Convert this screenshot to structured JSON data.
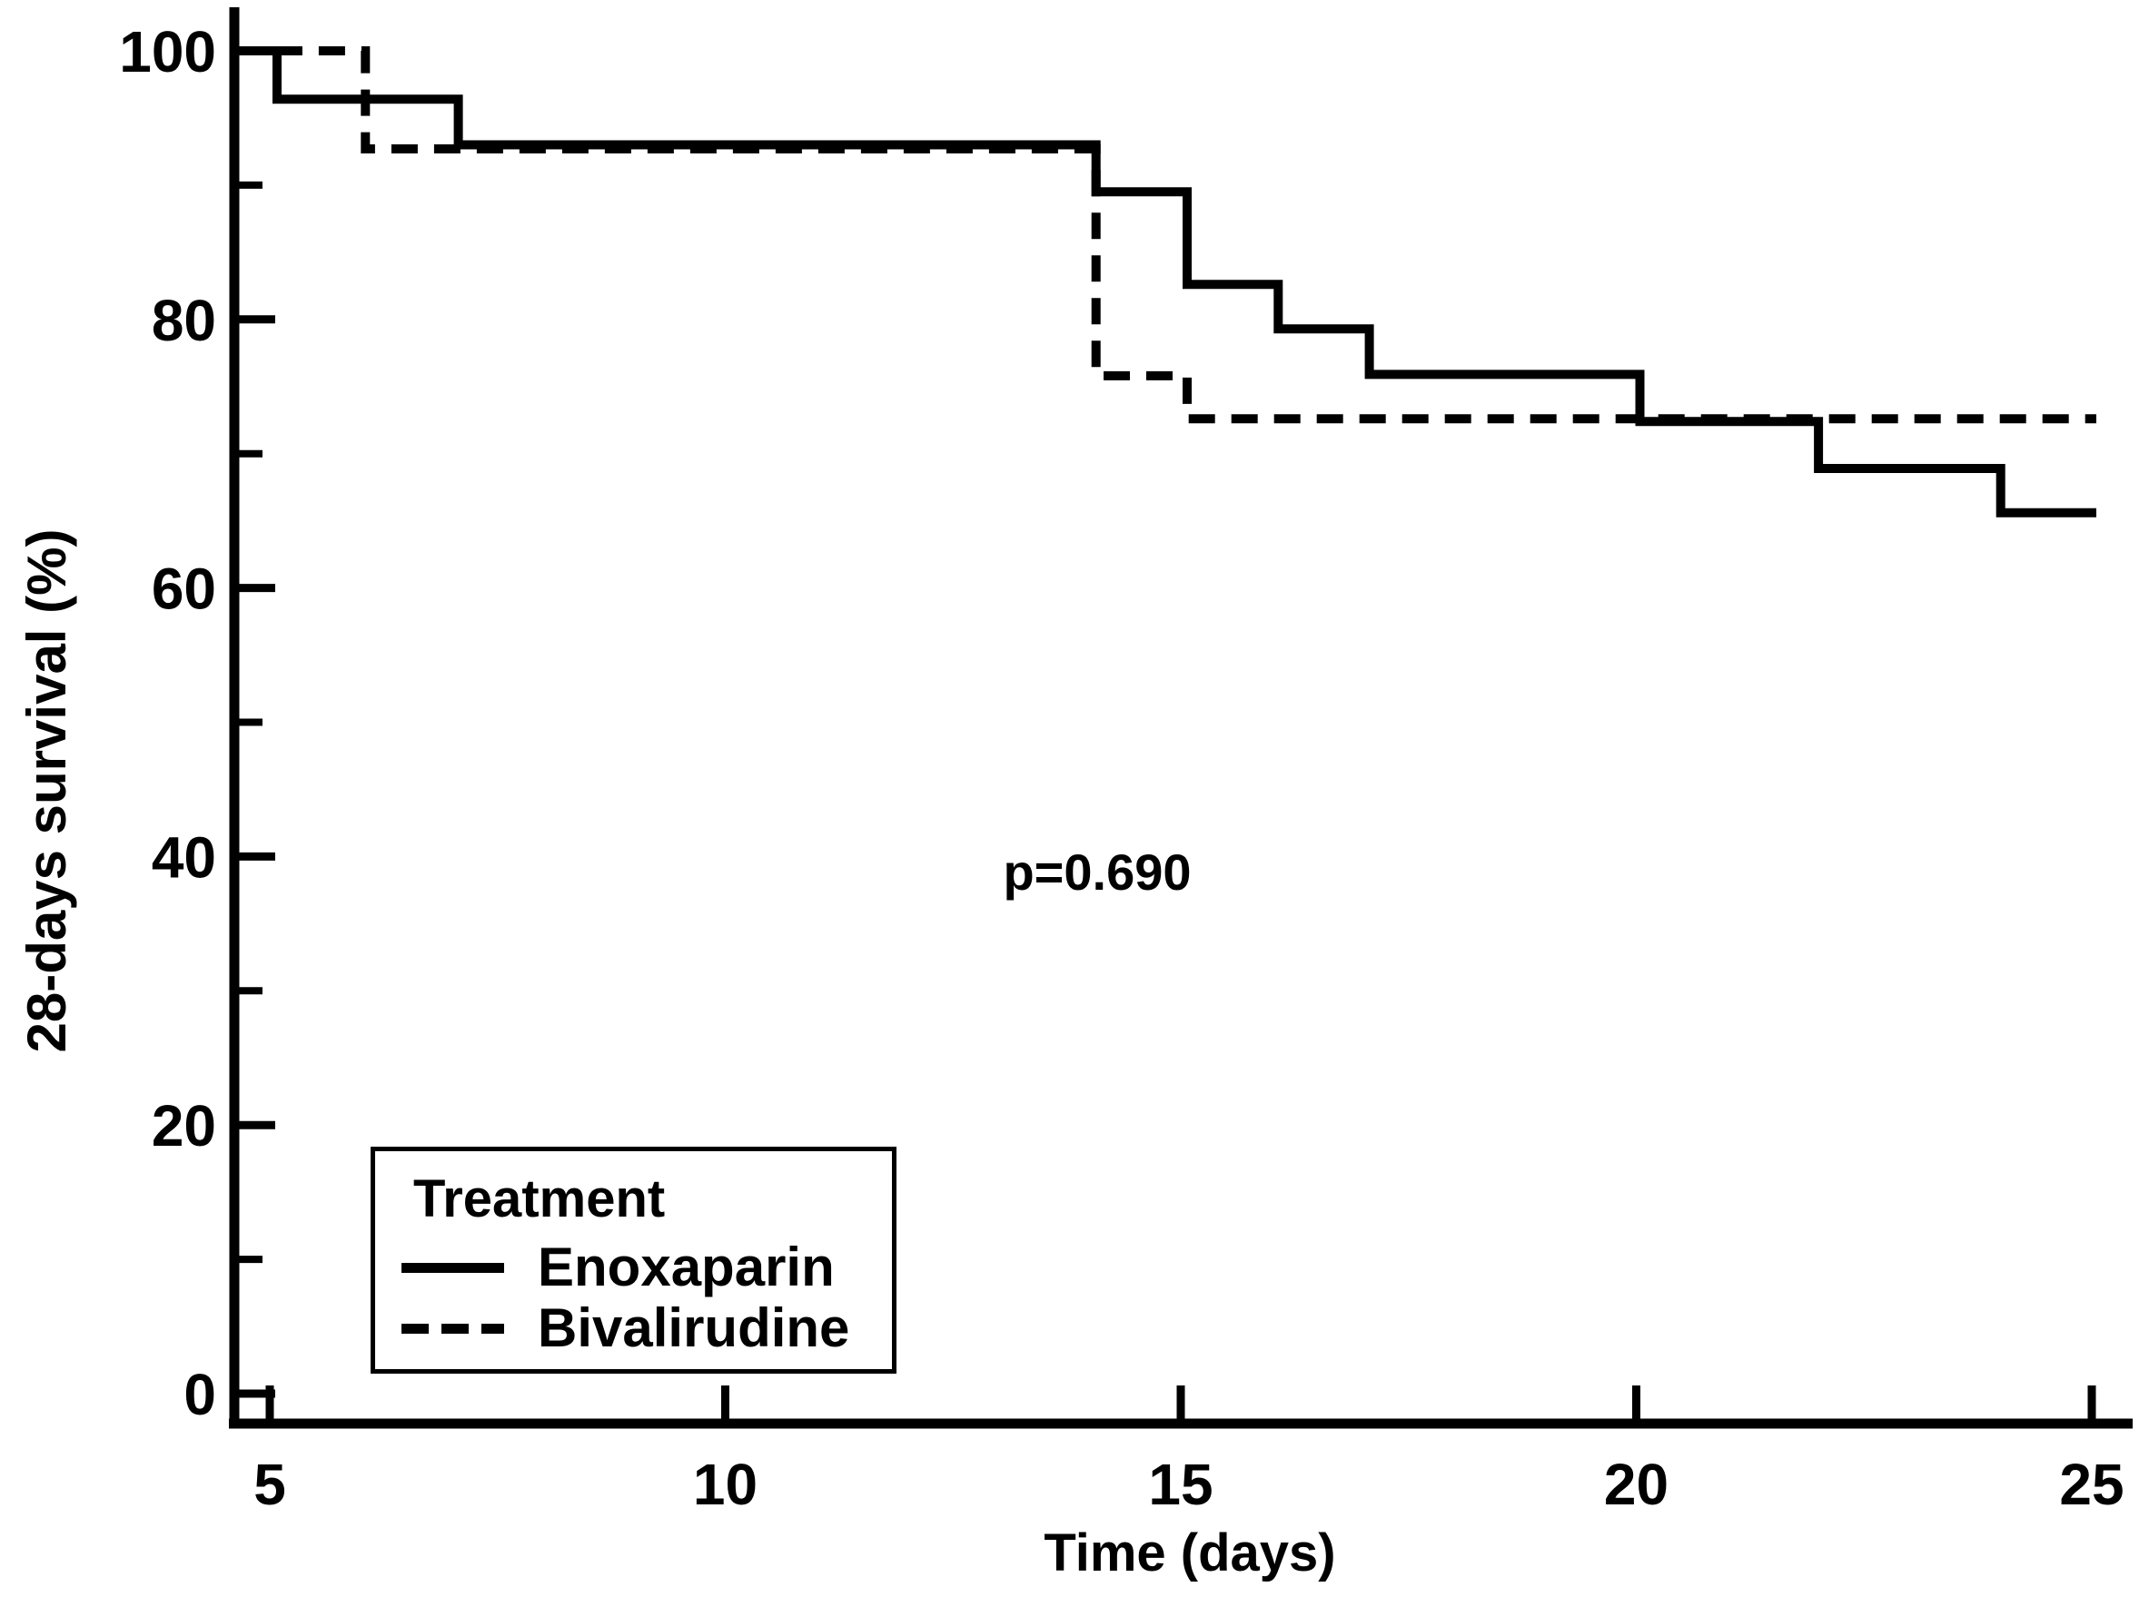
{
  "chart_data": {
    "type": "line",
    "chart_style": "kaplan-meier-step-survival",
    "title": "",
    "xlabel": "Time (days)",
    "ylabel": "28-days survival (%)",
    "x_ticks": [
      5,
      10,
      15,
      20,
      25
    ],
    "y_ticks_major": [
      0,
      20,
      40,
      60,
      80,
      100
    ],
    "y_ticks_minor": [
      10,
      30,
      50,
      70,
      90
    ],
    "xlim": [
      4.6,
      25.45
    ],
    "ylim": [
      0,
      103
    ],
    "grid": false,
    "axis_color": "#000000",
    "line_color": "#000000",
    "background_color": "#ffffff",
    "annotation": {
      "text": "p=0.690",
      "x": 14.1,
      "y": 40
    },
    "legend": {
      "title": "Treatment",
      "position": "lower-left",
      "entries": [
        {
          "label": "Enoxaparin",
          "line_style": "solid"
        },
        {
          "label": "Bivalirudine",
          "line_style": "dashed"
        }
      ]
    },
    "series": [
      {
        "name": "Enoxaparin",
        "line_style": "solid",
        "points": [
          [
            4.6,
            100
          ],
          [
            5.08,
            100
          ],
          [
            5.08,
            96.4
          ],
          [
            7.07,
            96.4
          ],
          [
            7.07,
            93.0
          ],
          [
            14.07,
            93.0
          ],
          [
            14.07,
            89.5
          ],
          [
            15.07,
            89.5
          ],
          [
            15.07,
            82.6
          ],
          [
            16.07,
            82.6
          ],
          [
            16.07,
            79.3
          ],
          [
            17.07,
            79.3
          ],
          [
            17.07,
            75.9
          ],
          [
            20.04,
            75.9
          ],
          [
            20.04,
            72.4
          ],
          [
            22.0,
            72.4
          ],
          [
            22.0,
            68.9
          ],
          [
            24.0,
            68.9
          ],
          [
            24.0,
            65.6
          ],
          [
            25.05,
            65.6
          ]
        ]
      },
      {
        "name": "Bivalirudine",
        "line_style": "dashed",
        "points": [
          [
            4.6,
            100
          ],
          [
            6.05,
            100
          ],
          [
            6.05,
            92.7
          ],
          [
            14.07,
            92.7
          ],
          [
            14.07,
            75.8
          ],
          [
            15.07,
            75.8
          ],
          [
            15.07,
            72.6
          ],
          [
            25.05,
            72.6
          ]
        ]
      }
    ]
  }
}
